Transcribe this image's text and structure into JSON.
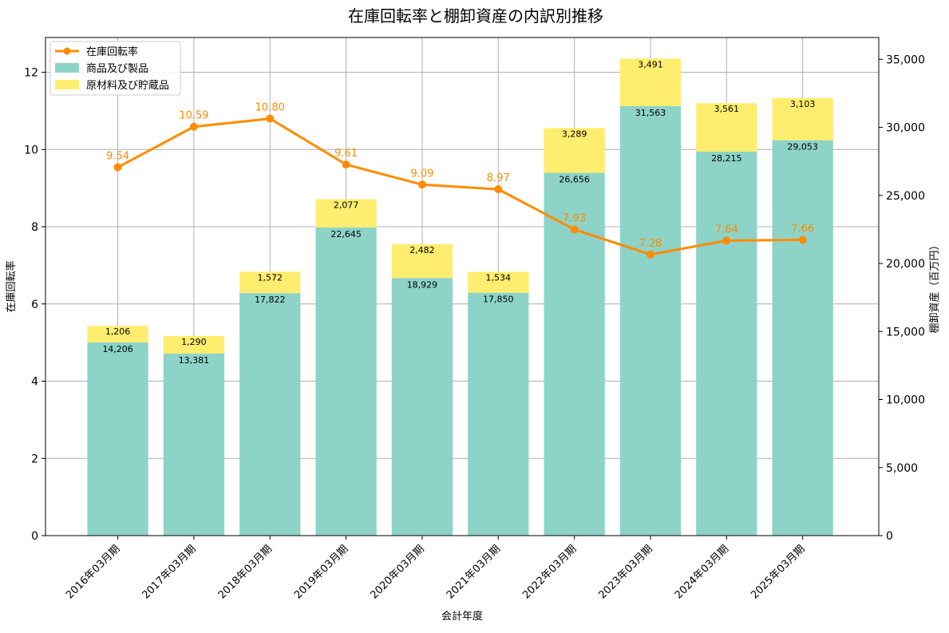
{
  "chart_data": {
    "type": "bar",
    "title": "在庫回転率と棚卸資産の内訳別推移",
    "xlabel": "会計年度",
    "ylabel_left": "在庫回転率",
    "ylabel_right": "棚卸資産（百万円）",
    "categories": [
      "2016年03月期",
      "2017年03月期",
      "2018年03月期",
      "2019年03月期",
      "2020年03月期",
      "2021年03月期",
      "2022年03月期",
      "2023年03月期",
      "2024年03月期",
      "2025年03月期"
    ],
    "series": [
      {
        "name": "商品及び製品",
        "kind": "bar",
        "axis": "right",
        "color": "#8dd3c7",
        "values": [
          14206,
          13381,
          17822,
          22645,
          18929,
          17850,
          26656,
          31563,
          28215,
          29053
        ],
        "labels": [
          "14,206",
          "13,381",
          "17,822",
          "22,645",
          "18,929",
          "17,850",
          "26,656",
          "31,563",
          "28,215",
          "29,053"
        ]
      },
      {
        "name": "原材料及び貯蔵品",
        "kind": "bar",
        "axis": "right",
        "color": "#ffed6f",
        "values": [
          1206,
          1290,
          1572,
          2077,
          2482,
          1534,
          3289,
          3491,
          3561,
          3103
        ],
        "labels": [
          "1,206",
          "1,290",
          "1,572",
          "2,077",
          "2,482",
          "1,534",
          "3,289",
          "3,491",
          "3,561",
          "3,103"
        ]
      },
      {
        "name": "在庫回転率",
        "kind": "line",
        "axis": "left",
        "color": "#ff8c00",
        "values": [
          9.54,
          10.59,
          10.8,
          9.61,
          9.09,
          8.97,
          7.93,
          7.28,
          7.64,
          7.66
        ],
        "labels": [
          "9.54",
          "10.59",
          "10.80",
          "9.61",
          "9.09",
          "8.97",
          "7.93",
          "7.28",
          "7.64",
          "7.66"
        ]
      }
    ],
    "ylim_left": [
      0,
      12.9
    ],
    "yticks_left": [
      0,
      2,
      4,
      6,
      8,
      10,
      12
    ],
    "ytick_labels_left": [
      "0",
      "2",
      "4",
      "6",
      "8",
      "10",
      "12"
    ],
    "ylim_right": [
      0,
      36600
    ],
    "yticks_right": [
      0,
      5000,
      10000,
      15000,
      20000,
      25000,
      30000,
      35000
    ],
    "ytick_labels_right": [
      "0",
      "5,000",
      "10,000",
      "15,000",
      "20,000",
      "25,000",
      "30,000",
      "35,000"
    ],
    "grid": true,
    "legend_position": "top-left",
    "legend_order": [
      "在庫回転率",
      "商品及び製品",
      "原材料及び貯蔵品"
    ]
  }
}
